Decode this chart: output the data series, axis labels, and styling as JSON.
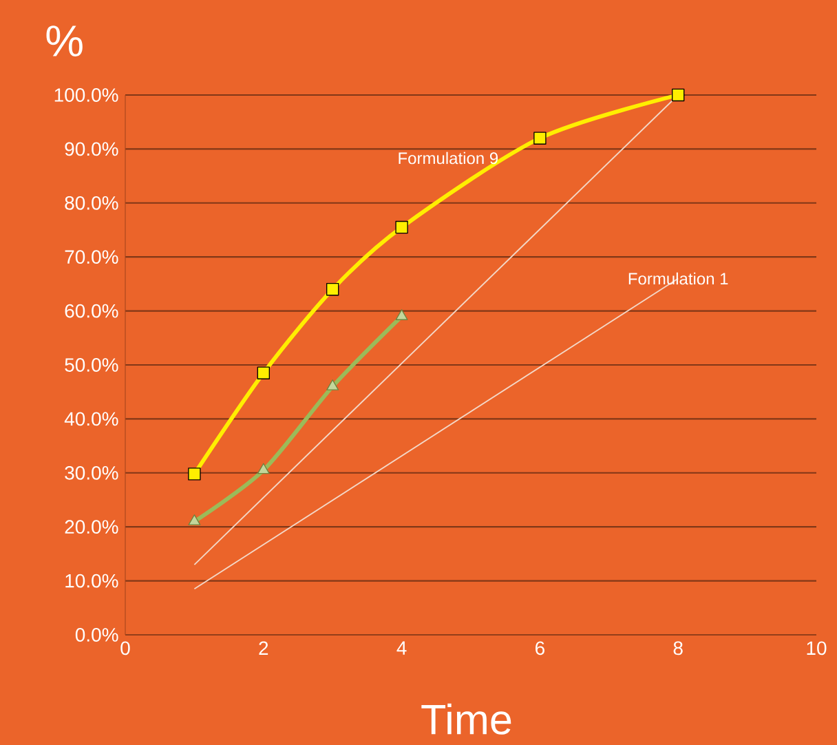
{
  "chart_data": {
    "type": "line",
    "xlabel": "Time",
    "ylabel": "%",
    "xlim": [
      0,
      10
    ],
    "xticks": [
      0,
      2,
      4,
      6,
      8,
      10
    ],
    "ylim": [
      0,
      100
    ],
    "yticks": [
      {
        "value": 0,
        "label": "0.0%"
      },
      {
        "value": 10,
        "label": "10.0%"
      },
      {
        "value": 20,
        "label": "20.0%"
      },
      {
        "value": 30,
        "label": "30.0%"
      },
      {
        "value": 40,
        "label": "40.0%"
      },
      {
        "value": 50,
        "label": "50.0%"
      },
      {
        "value": 60,
        "label": "60.0%"
      },
      {
        "value": 70,
        "label": "70.0%"
      },
      {
        "value": 80,
        "label": "80.0%"
      },
      {
        "value": 90,
        "label": "90.0%"
      },
      {
        "value": 100,
        "label": "100.0%"
      }
    ],
    "grid": "y",
    "series": [
      {
        "color": "#ffee00",
        "marker": "square",
        "x": [
          1,
          2,
          3,
          4,
          6,
          8
        ],
        "values": [
          29.8,
          48.5,
          64,
          75.5,
          92,
          100
        ]
      },
      {
        "color": "#9bbb59",
        "marker": "triangle",
        "x": [
          1,
          2,
          3,
          4
        ],
        "values": [
          21,
          30.5,
          46,
          59
        ]
      },
      {
        "color": "#f3d8c8",
        "marker": "none",
        "x": [
          1,
          8
        ],
        "values": [
          13,
          100
        ]
      },
      {
        "color": "#f3d8c8",
        "marker": "none",
        "x": [
          1,
          8
        ],
        "values": [
          8.5,
          66
        ]
      }
    ],
    "annotations": [
      "Formulation 9",
      {
        "text": "Formulation 1",
        "x": 8,
        "y": 66
      }
    ]
  }
}
